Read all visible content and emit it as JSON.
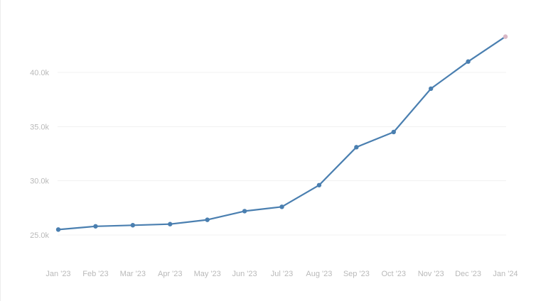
{
  "colors": {
    "series": "#4a7fb0",
    "last_point": "#d9b8c6",
    "grid": "#f1f1f1",
    "tick_text": "#b9b9b9"
  },
  "chart_data": {
    "type": "line",
    "title": "",
    "xlabel": "",
    "ylabel": "",
    "grid": true,
    "legend": "none",
    "categories": [
      "Jan '23",
      "Feb '23",
      "Mar '23",
      "Apr '23",
      "May '23",
      "Jun '23",
      "Jul '23",
      "Aug '23",
      "Sep '23",
      "Oct '23",
      "Nov '23",
      "Dec '23",
      "Jan '24"
    ],
    "x": [
      "2023-01-01",
      "2023-02-01",
      "2023-03-01",
      "2023-04-01",
      "2023-05-01",
      "2023-06-01",
      "2023-07-01",
      "2023-08-01",
      "2023-09-01",
      "2023-10-01",
      "2023-11-01",
      "2023-12-01",
      "2024-01-01"
    ],
    "series": [
      {
        "values": [
          25500,
          25800,
          25900,
          26000,
          26400,
          27200,
          27600,
          29600,
          33100,
          34500,
          38500,
          41000,
          43300
        ]
      }
    ],
    "yticks": [
      25000,
      30000,
      35000,
      40000
    ],
    "ytick_labels": [
      "25.0k",
      "30.0k",
      "35.0k",
      "40.0k"
    ],
    "ylim": [
      22000,
      45000
    ]
  }
}
